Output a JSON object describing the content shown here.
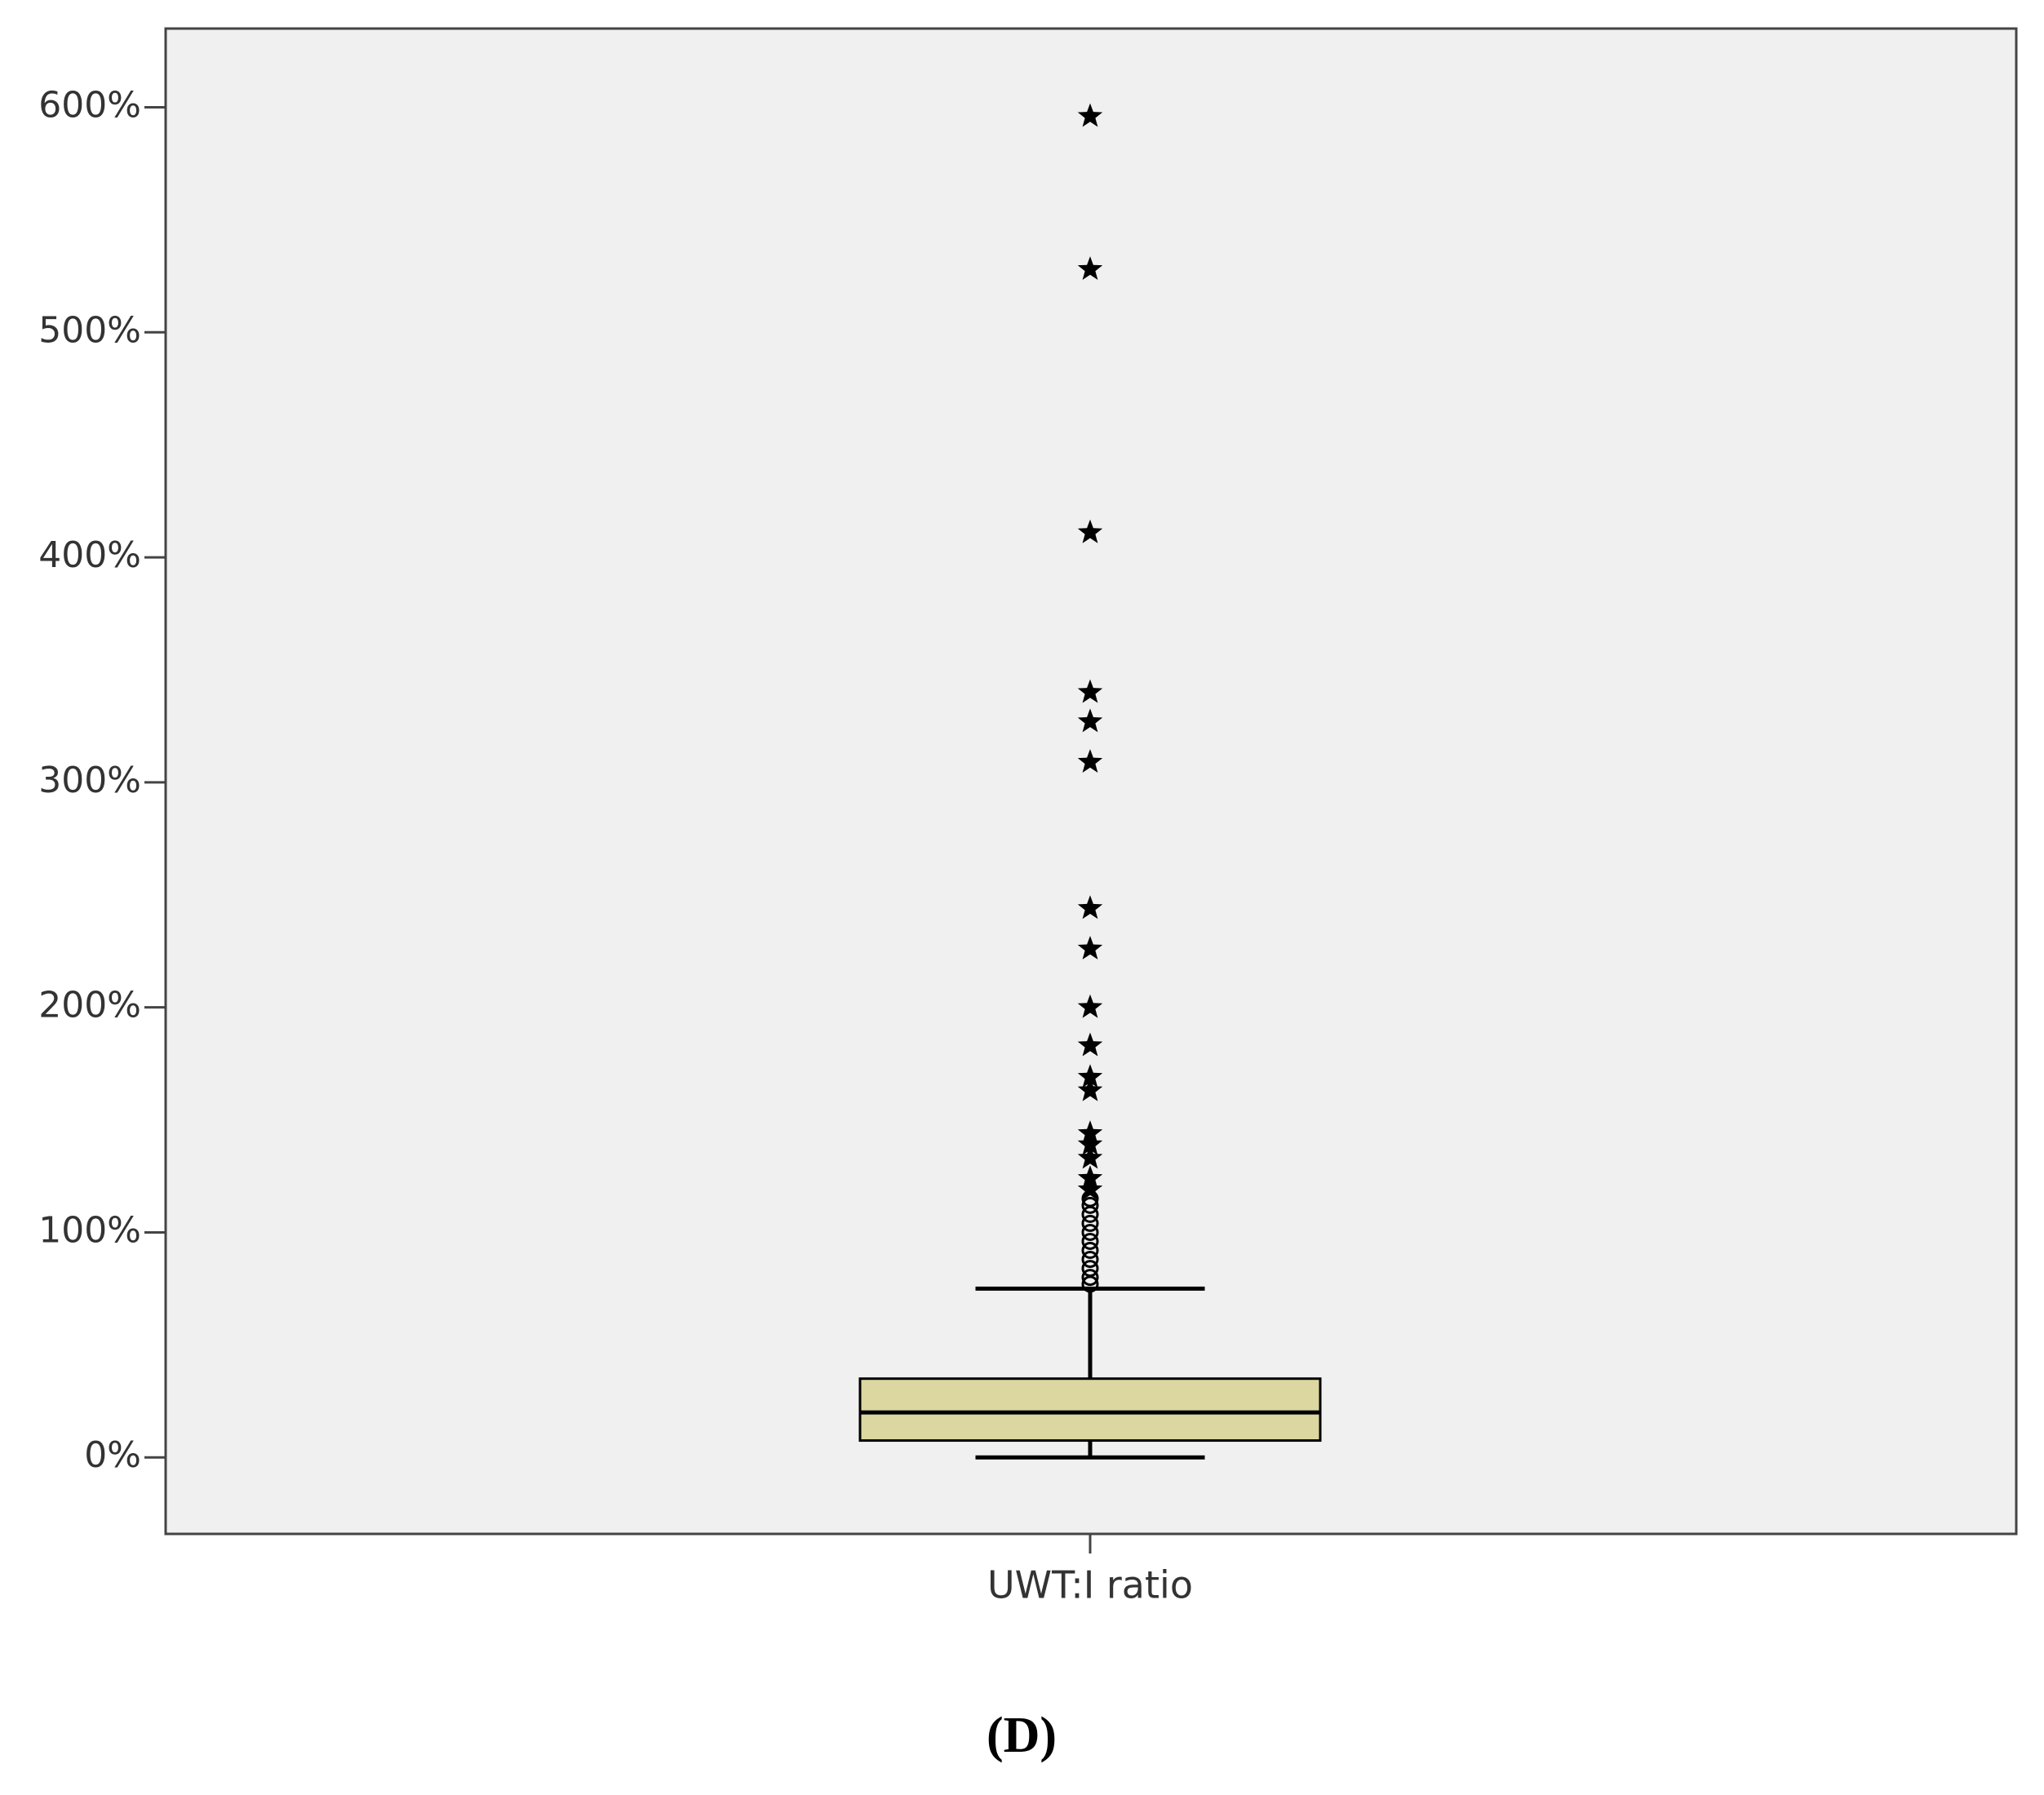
{
  "chart_data": {
    "type": "box",
    "caption": "(D)",
    "categories": [
      "UWT:I ratio"
    ],
    "series": [
      {
        "color": "#dcd6a0",
        "min": [
          0
        ],
        "q1": [
          7.5
        ],
        "median": [
          20
        ],
        "q3": [
          35
        ],
        "max": [
          75
        ],
        "outliers": [
          [
            77,
            80,
            84,
            88,
            92,
            96,
            100,
            104,
            108,
            112,
            115
          ]
        ],
        "extremes": [
          [
            119,
            124,
            133,
            139,
            144,
            163,
            169,
            183,
            200,
            226,
            244,
            309,
            327,
            340,
            411,
            528,
            596
          ]
        ]
      }
    ],
    "ylim": [
      -34,
      635
    ],
    "yticks": [
      {
        "value": 0,
        "label": "0%"
      },
      {
        "value": 100,
        "label": "100%"
      },
      {
        "value": 200,
        "label": "200%"
      },
      {
        "value": 300,
        "label": "300%"
      },
      {
        "value": 400,
        "label": "400%"
      },
      {
        "value": 500,
        "label": "500%"
      },
      {
        "value": 600,
        "label": "600%"
      }
    ],
    "background": "#f0f0f0"
  }
}
